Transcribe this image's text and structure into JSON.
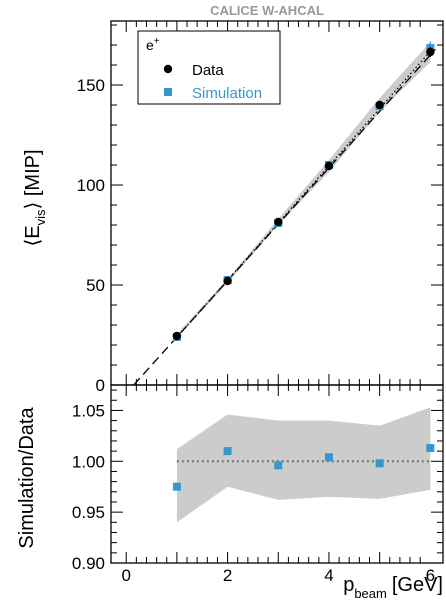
{
  "chart_data": [
    {
      "type": "scatter",
      "title": "CALICE W-AHCAL",
      "ylabel_main": "E",
      "ylabel_sub": "vis",
      "ylabel_unit": "[MIP]",
      "xlim": [
        -0.3,
        6.25
      ],
      "ylim": [
        0,
        182
      ],
      "yticks": [
        0,
        50,
        100,
        150
      ],
      "legend_title": "e",
      "legend_title_sup": "+",
      "legend_position": "top-left",
      "series": [
        {
          "name": "Data",
          "color": "#000000",
          "marker": "circle",
          "x": [
            1,
            2,
            3,
            4,
            5,
            6
          ],
          "y": [
            24.5,
            52.0,
            81.5,
            109.5,
            140.0,
            166.5
          ],
          "yerr": [
            0.6,
            0.8,
            1.2,
            1.5,
            2.0,
            2.5
          ]
        },
        {
          "name": "Simulation",
          "color": "#3399cc",
          "marker": "square",
          "x": [
            1,
            2,
            3,
            4,
            5,
            6
          ],
          "y": [
            24.0,
            52.5,
            81.0,
            110.0,
            139.5,
            168.5
          ],
          "yerr": [
            0.6,
            0.8,
            1.2,
            1.8,
            2.5,
            3.2
          ]
        }
      ],
      "fit_line": {
        "style": "dashed",
        "slope": 28.2,
        "intercept": -4.2,
        "xrange": [
          0.15,
          6.1
        ]
      },
      "dotted_line": {
        "style": "dotted",
        "slope": 28.6,
        "intercept": -4.8,
        "xrange": [
          1,
          6
        ]
      },
      "band": {
        "x": [
          1,
          2,
          3,
          4,
          5,
          6
        ],
        "low": [
          23.5,
          51.0,
          80.0,
          106.5,
          136.5,
          161.5
        ],
        "high": [
          25.5,
          53.0,
          83.0,
          112.5,
          143.5,
          171.5
        ]
      }
    },
    {
      "type": "scatter",
      "ylabel": "Simulation/Data",
      "xlabel_main": "p",
      "xlabel_sub": "beam",
      "xlabel_unit": "[GeV]",
      "xlim": [
        -0.3,
        6.25
      ],
      "ylim": [
        0.9,
        1.075
      ],
      "xticks": [
        0,
        2,
        4,
        6
      ],
      "yticks": [
        0.9,
        0.95,
        1.0,
        1.05
      ],
      "ytick_labels": [
        "0.90",
        "0.95",
        "1.00",
        "1.05"
      ],
      "reference_line": 1.0,
      "series": [
        {
          "name": "Simulation/Data",
          "color": "#3399cc",
          "marker": "square",
          "x": [
            1,
            2,
            3,
            4,
            5,
            6
          ],
          "y": [
            0.975,
            1.01,
            0.996,
            1.004,
            0.998,
            1.013
          ]
        }
      ],
      "band": {
        "x": [
          1,
          2,
          3,
          4,
          5,
          6
        ],
        "low": [
          0.94,
          0.975,
          0.962,
          0.965,
          0.963,
          0.972
        ],
        "high": [
          1.012,
          1.046,
          1.04,
          1.04,
          1.035,
          1.053
        ]
      }
    }
  ]
}
